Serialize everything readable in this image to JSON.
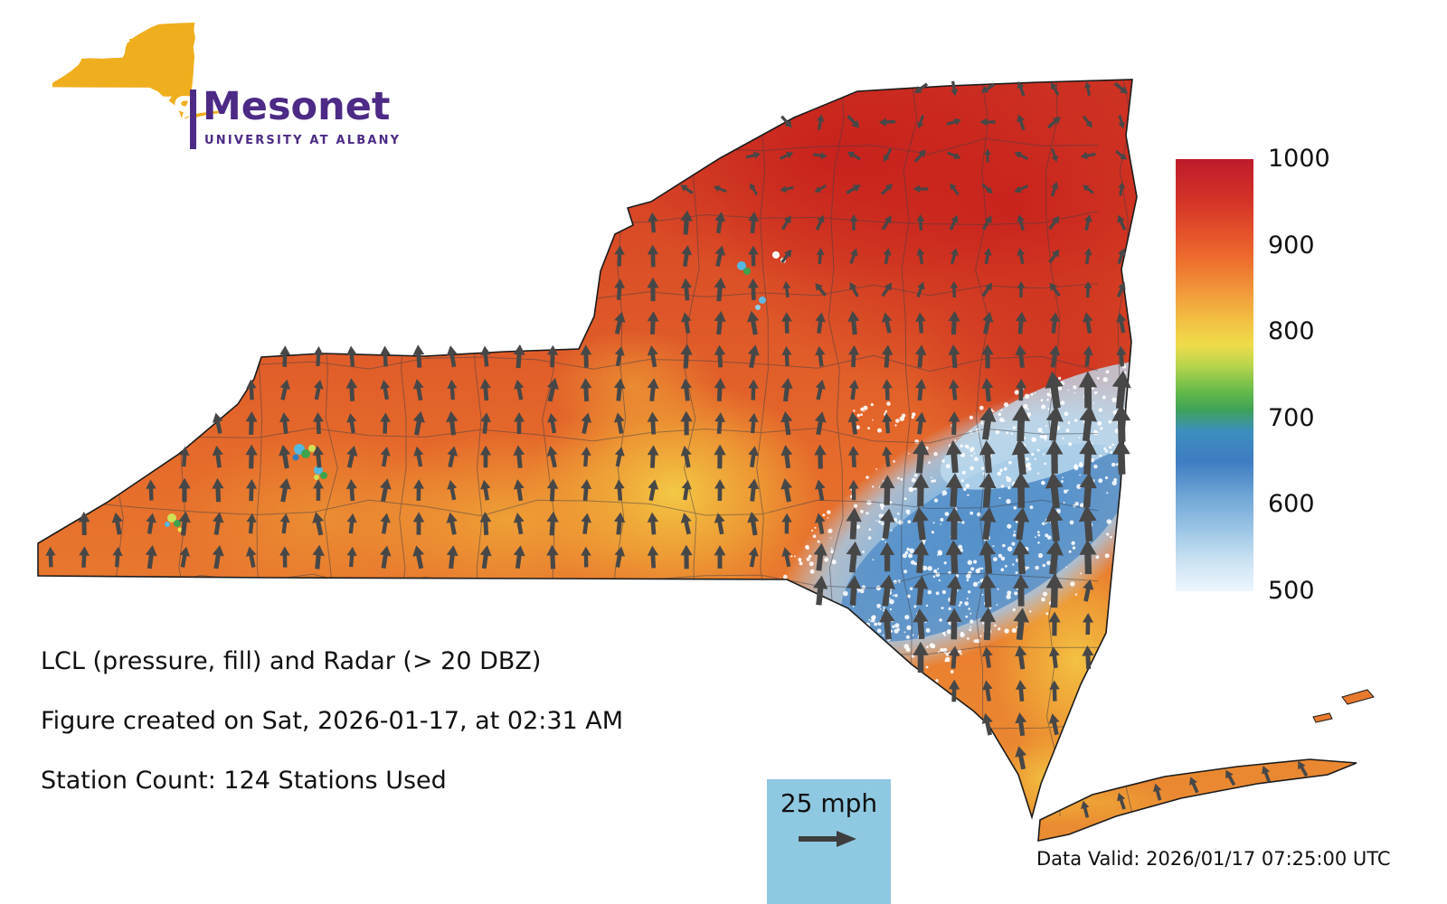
{
  "logo": {
    "acronym": "NYS",
    "name": "Mesonet",
    "subtitle": "UNIVERSITY AT ALBANY"
  },
  "annotations": {
    "title": "LCL (pressure, fill) and Radar (> 20 DBZ)",
    "created": "Figure created on Sat, 2026-01-17, at 02:31 AM",
    "stations": "Station Count: 124 Stations Used",
    "data_valid": "Data Valid: 2026/01/17 07:25:00 UTC"
  },
  "wind_legend": {
    "label": "25 mph"
  },
  "colorbar": {
    "ticks": [
      "1000",
      "900",
      "800",
      "700",
      "600",
      "500"
    ]
  },
  "colors": {
    "fill_high_pressure_red": "#C62828",
    "fill_mid_orange": "#E87428",
    "fill_yellow": "#F2C843",
    "radar_low_lcl_blue": "#5E97CC",
    "wind_arrow": "#474747",
    "logo_gold": "#EFAE1D",
    "logo_purple": "#4C2A85",
    "wind_legend_bg": "#8FC8E1"
  },
  "chart_data": {
    "type": "heatmap",
    "title": "LCL (pressure, fill) and Radar (> 20 DBZ)",
    "region": "New York State",
    "fill_variable": "LCL (pressure)",
    "overlay": "Radar (> 20 DBZ)",
    "colorbar_ticks": [
      1000,
      900,
      800,
      700,
      600,
      500
    ],
    "colorbar_range": [
      500,
      1000
    ],
    "colorbar_orientation": "vertical-right",
    "colorbar_color_order_top_to_bottom": [
      "red",
      "orange",
      "yellow",
      "green",
      "blue",
      "light-blue"
    ],
    "wind_reference": "25 mph",
    "station_count": 124,
    "figure_created": "Sat, 2026-01-17, at 02:31 AM",
    "data_valid_utc": "2026/01/17 07:25:00 UTC",
    "pattern_summary": "High LCL pressure (900-1000, red/orange) across western and northern NY; yellow band (800-850) through central NY and Long Island; low LCL (500-650, speckled blue) band over the southeastern Catskills/Hudson Valley with strong northward wind vectors"
  }
}
